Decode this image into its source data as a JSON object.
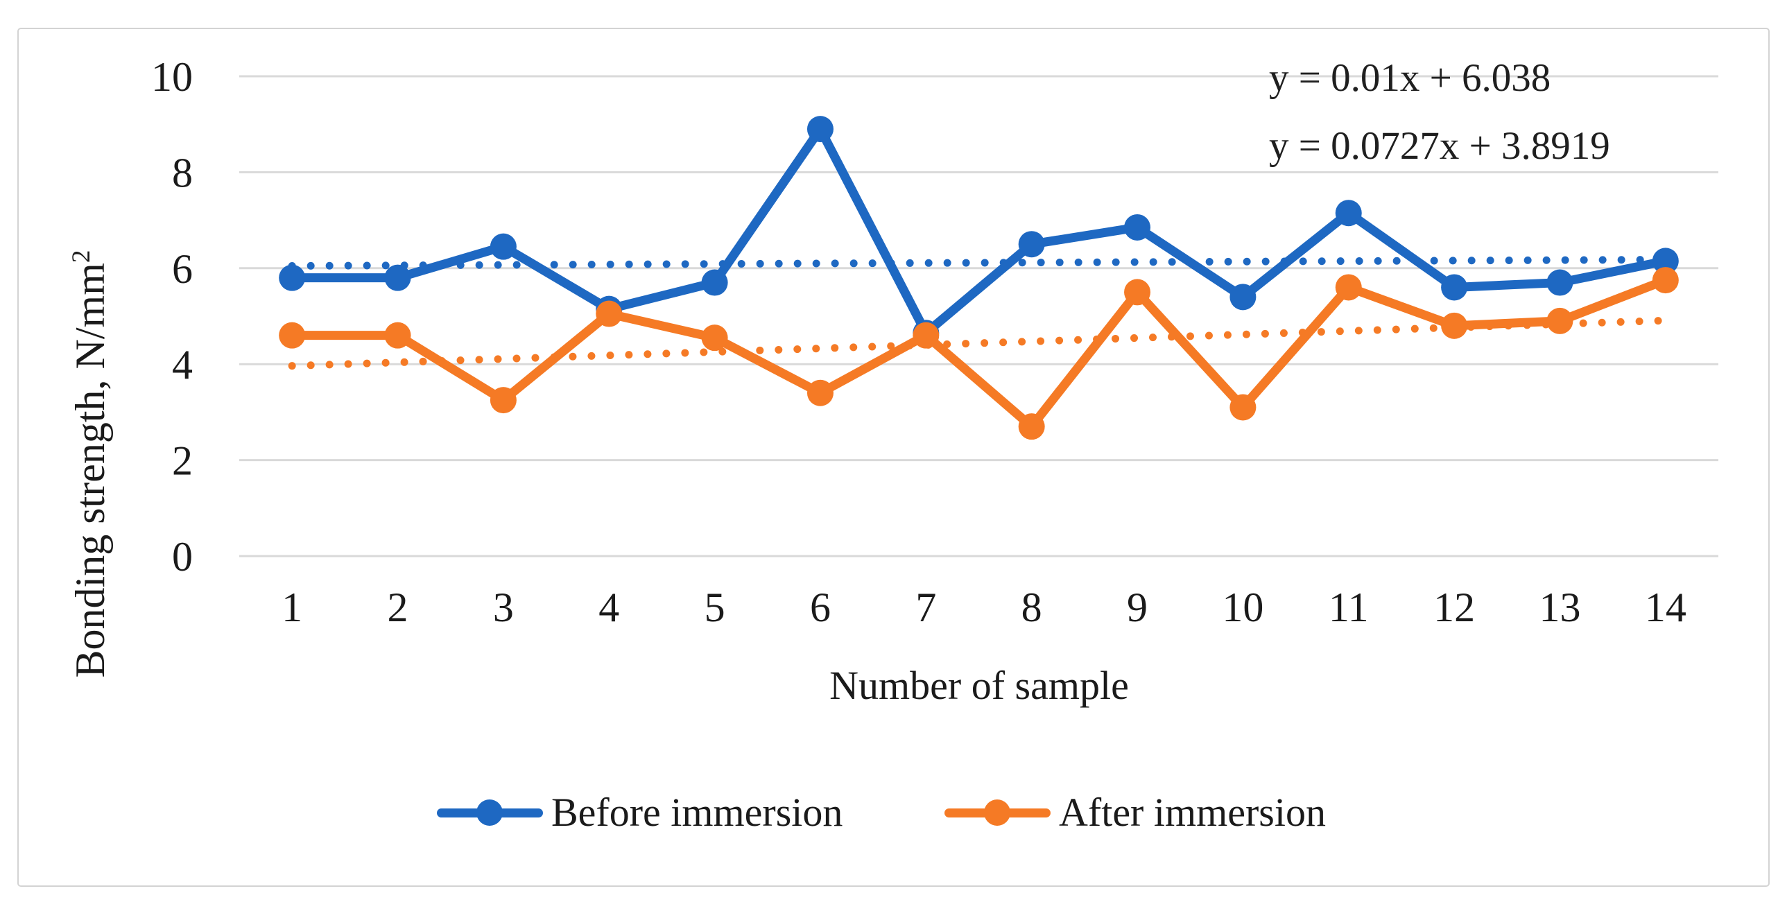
{
  "figure": {
    "background": "#ffffff",
    "frame_border_color": "#d3d3d3"
  },
  "colors": {
    "before": "#1e68c2",
    "after": "#f57a25",
    "gridline": "#d9d9d9",
    "text": "#1a1a1a"
  },
  "axis": {
    "y_title_main": "Bonding strength, N/mm",
    "y_title_sup": "2",
    "x_title": "Number of sample"
  },
  "chart_data": {
    "type": "line",
    "title": "",
    "xlabel": "Number of sample",
    "ylabel": "Bonding strength, N/mm²",
    "categories": [
      "1",
      "2",
      "3",
      "4",
      "5",
      "6",
      "7",
      "8",
      "9",
      "10",
      "11",
      "12",
      "13",
      "14"
    ],
    "ylim": [
      0,
      10
    ],
    "yticks": [
      "0",
      "2",
      "4",
      "6",
      "8",
      "10"
    ],
    "grid": true,
    "legend_position": "bottom",
    "series": [
      {
        "name": "Before immersion",
        "color": "#1e68c2",
        "values": [
          5.8,
          5.8,
          6.45,
          5.15,
          5.7,
          8.9,
          4.65,
          6.5,
          6.85,
          5.4,
          7.15,
          5.6,
          5.7,
          6.15
        ],
        "trendline": {
          "slope": 0.01,
          "intercept": 6.038,
          "label": "y = 0.01x + 6.038"
        }
      },
      {
        "name": "After immersion",
        "color": "#f57a25",
        "values": [
          4.6,
          4.6,
          3.25,
          5.05,
          4.55,
          3.4,
          4.6,
          2.7,
          5.5,
          3.1,
          5.6,
          4.8,
          4.9,
          5.75
        ],
        "trendline": {
          "slope": 0.0727,
          "intercept": 3.8919,
          "label": "y = 0.0727x + 3.8919"
        }
      }
    ]
  }
}
